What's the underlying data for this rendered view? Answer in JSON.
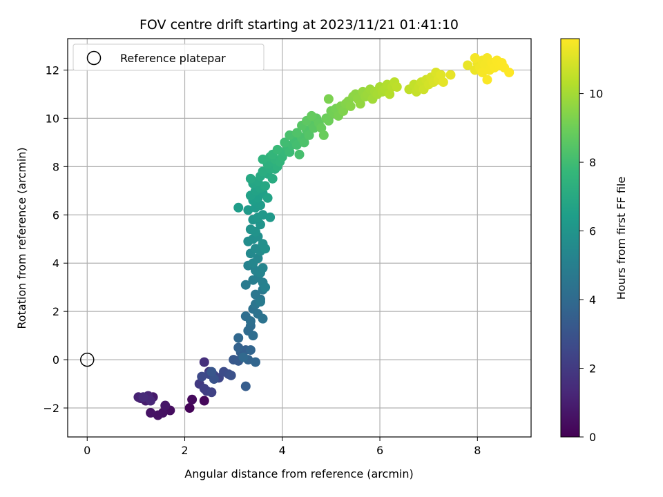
{
  "chart_data": {
    "type": "scatter",
    "title": "FOV centre drift starting at 2023/11/21 01:41:10",
    "xlabel": "Angular distance from reference (arcmin)",
    "ylabel": "Rotation from reference (arcmin)",
    "xlim": [
      -0.4,
      9.1
    ],
    "ylim": [
      -3.2,
      13.3
    ],
    "xticks": [
      0,
      2,
      4,
      6,
      8
    ],
    "yticks": [
      -2,
      0,
      2,
      4,
      6,
      8,
      10,
      12
    ],
    "grid": true,
    "legend": {
      "placement": "upper-left",
      "entries": [
        "Reference platepar"
      ]
    },
    "reference_point": {
      "x": 0,
      "y": 0,
      "label": "Reference platepar"
    },
    "colorbar": {
      "label": "Hours from first FF file",
      "colormap": "viridis",
      "range": [
        0,
        11.6
      ],
      "ticks": [
        0,
        2,
        4,
        6,
        8,
        10
      ]
    },
    "colormap_stops": [
      "#440154",
      "#482878",
      "#3e4989",
      "#31688e",
      "#26828e",
      "#1f9e89",
      "#35b779",
      "#6ece58",
      "#b5de2b",
      "#fde725"
    ],
    "points_columns": [
      "x",
      "y",
      "hours"
    ],
    "points": [
      [
        2.1,
        -2.0,
        0.1
      ],
      [
        2.4,
        -1.7,
        0.2
      ],
      [
        2.15,
        -1.65,
        0.3
      ],
      [
        1.7,
        -2.1,
        0.4
      ],
      [
        1.55,
        -2.2,
        0.5
      ],
      [
        1.45,
        -2.3,
        0.55
      ],
      [
        1.3,
        -2.2,
        0.6
      ],
      [
        1.6,
        -1.9,
        0.7
      ],
      [
        1.35,
        -1.55,
        0.8
      ],
      [
        1.2,
        -1.7,
        0.9
      ],
      [
        1.1,
        -1.6,
        1.0
      ],
      [
        1.05,
        -1.55,
        1.1
      ],
      [
        1.25,
        -1.5,
        1.2
      ],
      [
        1.3,
        -1.7,
        1.3
      ],
      [
        1.15,
        -1.55,
        1.4
      ],
      [
        2.4,
        -0.1,
        1.6
      ],
      [
        2.5,
        -0.5,
        1.8
      ],
      [
        2.3,
        -1.0,
        2.0
      ],
      [
        2.45,
        -1.3,
        2.1
      ],
      [
        2.4,
        -1.2,
        2.2
      ],
      [
        2.55,
        -1.35,
        2.3
      ],
      [
        2.6,
        -0.65,
        2.4
      ],
      [
        2.7,
        -0.75,
        2.5
      ],
      [
        2.5,
        -0.6,
        2.55
      ],
      [
        2.35,
        -0.7,
        2.6
      ],
      [
        2.8,
        -0.5,
        2.7
      ],
      [
        2.9,
        -0.6,
        2.8
      ],
      [
        2.95,
        -0.65,
        2.9
      ],
      [
        2.6,
        -0.8,
        3.0
      ],
      [
        2.55,
        -0.5,
        3.1
      ],
      [
        3.0,
        0.0,
        3.2
      ],
      [
        3.1,
        -0.05,
        3.3
      ],
      [
        3.25,
        -1.1,
        3.4
      ],
      [
        3.15,
        0.3,
        3.45
      ],
      [
        3.25,
        0.4,
        3.5
      ],
      [
        3.1,
        0.5,
        3.6
      ],
      [
        3.3,
        0.0,
        3.7
      ],
      [
        3.35,
        0.4,
        3.75
      ],
      [
        3.45,
        -0.1,
        3.8
      ],
      [
        3.1,
        0.9,
        3.85
      ],
      [
        3.2,
        0.1,
        3.9
      ],
      [
        3.3,
        1.2,
        4.0
      ],
      [
        3.35,
        1.4,
        4.05
      ],
      [
        3.4,
        1.0,
        4.1
      ],
      [
        3.25,
        1.8,
        4.15
      ],
      [
        3.35,
        1.6,
        4.2
      ],
      [
        3.4,
        2.1,
        4.3
      ],
      [
        3.5,
        1.9,
        4.35
      ],
      [
        3.6,
        1.7,
        4.4
      ],
      [
        3.45,
        2.3,
        4.5
      ],
      [
        3.55,
        2.5,
        4.55
      ],
      [
        3.45,
        2.7,
        4.6
      ],
      [
        3.6,
        2.9,
        4.7
      ],
      [
        3.55,
        2.4,
        4.75
      ],
      [
        3.25,
        3.1,
        4.8
      ],
      [
        3.4,
        3.3,
        4.9
      ],
      [
        3.5,
        3.4,
        5.0
      ],
      [
        3.6,
        3.2,
        5.05
      ],
      [
        3.65,
        3.0,
        5.1
      ],
      [
        3.3,
        3.9,
        5.15
      ],
      [
        3.45,
        3.7,
        5.2
      ],
      [
        3.55,
        3.6,
        5.25
      ],
      [
        3.6,
        3.8,
        5.3
      ],
      [
        3.4,
        4.0,
        5.35
      ],
      [
        3.5,
        4.2,
        5.4
      ],
      [
        3.35,
        4.4,
        5.5
      ],
      [
        3.45,
        4.6,
        5.55
      ],
      [
        3.55,
        4.5,
        5.6
      ],
      [
        3.3,
        4.9,
        5.65
      ],
      [
        3.4,
        5.0,
        5.7
      ],
      [
        3.5,
        5.1,
        5.75
      ],
      [
        3.6,
        4.8,
        5.8
      ],
      [
        3.65,
        4.6,
        5.85
      ],
      [
        3.35,
        5.4,
        5.9
      ],
      [
        3.45,
        5.3,
        5.95
      ],
      [
        3.55,
        5.6,
        6.0
      ],
      [
        3.4,
        5.8,
        6.05
      ],
      [
        3.5,
        5.9,
        6.1
      ],
      [
        3.6,
        6.0,
        6.15
      ],
      [
        3.75,
        5.9,
        6.2
      ],
      [
        3.3,
        6.2,
        6.25
      ],
      [
        3.45,
        6.3,
        6.3
      ],
      [
        3.55,
        6.4,
        6.35
      ],
      [
        3.1,
        6.3,
        6.4
      ],
      [
        3.4,
        6.6,
        6.45
      ],
      [
        3.5,
        6.7,
        6.5
      ],
      [
        3.6,
        6.9,
        6.55
      ],
      [
        3.35,
        6.8,
        6.6
      ],
      [
        3.45,
        7.0,
        6.65
      ],
      [
        3.7,
        6.7,
        6.7
      ],
      [
        3.55,
        7.1,
        6.75
      ],
      [
        3.4,
        7.3,
        6.8
      ],
      [
        3.5,
        7.4,
        6.85
      ],
      [
        3.65,
        7.2,
        6.9
      ],
      [
        3.35,
        7.5,
        6.95
      ],
      [
        3.55,
        7.6,
        7.0
      ],
      [
        3.7,
        7.7,
        7.05
      ],
      [
        3.8,
        7.5,
        7.1
      ],
      [
        3.6,
        7.8,
        7.15
      ],
      [
        3.75,
        7.9,
        7.2
      ],
      [
        3.85,
        7.9,
        7.25
      ],
      [
        3.7,
        8.1,
        7.3
      ],
      [
        3.8,
        8.2,
        7.35
      ],
      [
        3.9,
        8.0,
        7.4
      ],
      [
        3.6,
        8.3,
        7.45
      ],
      [
        3.75,
        8.4,
        7.5
      ],
      [
        3.85,
        8.3,
        7.55
      ],
      [
        3.95,
        8.2,
        7.6
      ],
      [
        3.8,
        8.5,
        7.65
      ],
      [
        4.0,
        8.4,
        7.7
      ],
      [
        4.05,
        8.6,
        7.75
      ],
      [
        3.9,
        8.7,
        7.8
      ],
      [
        4.1,
        8.8,
        7.85
      ],
      [
        4.15,
        8.6,
        7.9
      ],
      [
        4.2,
        8.9,
        7.95
      ],
      [
        4.05,
        9.0,
        8.0
      ],
      [
        4.25,
        9.1,
        8.05
      ],
      [
        4.3,
        8.9,
        8.1
      ],
      [
        4.35,
        8.5,
        8.15
      ],
      [
        4.15,
        9.3,
        8.2
      ],
      [
        4.4,
        9.2,
        8.25
      ],
      [
        4.45,
        9.0,
        8.3
      ],
      [
        4.3,
        9.4,
        8.35
      ],
      [
        4.5,
        9.5,
        8.4
      ],
      [
        4.55,
        9.3,
        8.45
      ],
      [
        4.4,
        9.7,
        8.5
      ],
      [
        4.6,
        9.8,
        8.55
      ],
      [
        4.65,
        9.6,
        8.6
      ],
      [
        4.5,
        9.9,
        8.65
      ],
      [
        4.7,
        10.0,
        8.7
      ],
      [
        4.75,
        9.8,
        8.75
      ],
      [
        4.6,
        10.1,
        8.8
      ],
      [
        4.8,
        9.6,
        8.85
      ],
      [
        4.85,
        9.3,
        8.9
      ],
      [
        4.9,
        10.0,
        8.95
      ],
      [
        4.95,
        9.9,
        9.0
      ],
      [
        5.0,
        10.3,
        9.05
      ],
      [
        5.05,
        10.2,
        9.1
      ],
      [
        5.1,
        10.4,
        9.15
      ],
      [
        5.15,
        10.1,
        9.2
      ],
      [
        4.95,
        10.8,
        9.25
      ],
      [
        5.2,
        10.5,
        9.3
      ],
      [
        5.25,
        10.3,
        9.35
      ],
      [
        5.3,
        10.6,
        9.4
      ],
      [
        5.35,
        10.7,
        9.45
      ],
      [
        5.4,
        10.5,
        9.5
      ],
      [
        5.45,
        10.9,
        9.55
      ],
      [
        5.5,
        11.0,
        9.6
      ],
      [
        5.55,
        10.8,
        9.65
      ],
      [
        5.6,
        10.6,
        9.7
      ],
      [
        5.65,
        11.1,
        9.75
      ],
      [
        5.7,
        10.9,
        9.8
      ],
      [
        5.75,
        11.0,
        9.85
      ],
      [
        5.8,
        11.2,
        9.9
      ],
      [
        5.85,
        10.8,
        9.95
      ],
      [
        5.9,
        11.1,
        10.0
      ],
      [
        5.95,
        11.0,
        10.05
      ],
      [
        6.0,
        11.3,
        10.1
      ],
      [
        6.05,
        11.1,
        10.15
      ],
      [
        6.1,
        11.2,
        10.2
      ],
      [
        6.15,
        11.4,
        10.25
      ],
      [
        6.2,
        11.0,
        10.3
      ],
      [
        6.25,
        11.3,
        10.35
      ],
      [
        6.3,
        11.5,
        10.4
      ],
      [
        6.35,
        11.3,
        10.45
      ],
      [
        6.6,
        11.2,
        10.5
      ],
      [
        6.7,
        11.4,
        10.55
      ],
      [
        6.75,
        11.1,
        10.6
      ],
      [
        6.8,
        11.3,
        10.65
      ],
      [
        6.85,
        11.5,
        10.7
      ],
      [
        6.9,
        11.2,
        10.75
      ],
      [
        6.95,
        11.6,
        10.8
      ],
      [
        7.0,
        11.4,
        10.85
      ],
      [
        7.05,
        11.7,
        10.9
      ],
      [
        7.1,
        11.5,
        10.95
      ],
      [
        7.15,
        11.9,
        11.0
      ],
      [
        7.2,
        11.6,
        11.05
      ],
      [
        7.25,
        11.8,
        11.1
      ],
      [
        7.3,
        11.5,
        11.15
      ],
      [
        7.45,
        11.8,
        11.2
      ],
      [
        7.8,
        12.2,
        11.25
      ],
      [
        7.95,
        12.0,
        11.3
      ],
      [
        8.0,
        12.3,
        11.35
      ],
      [
        8.05,
        12.1,
        11.4
      ],
      [
        8.1,
        12.4,
        11.42
      ],
      [
        8.15,
        12.2,
        11.45
      ],
      [
        8.2,
        12.5,
        11.48
      ],
      [
        8.25,
        12.0,
        11.5
      ],
      [
        8.3,
        12.3,
        11.52
      ],
      [
        8.35,
        12.1,
        11.54
      ],
      [
        8.4,
        12.4,
        11.56
      ],
      [
        8.45,
        12.2,
        11.57
      ],
      [
        8.5,
        12.3,
        11.58
      ],
      [
        8.55,
        12.1,
        11.59
      ],
      [
        8.65,
        11.9,
        11.6
      ],
      [
        8.2,
        11.6,
        11.55
      ],
      [
        8.1,
        11.9,
        11.5
      ],
      [
        7.95,
        12.5,
        11.45
      ]
    ]
  }
}
